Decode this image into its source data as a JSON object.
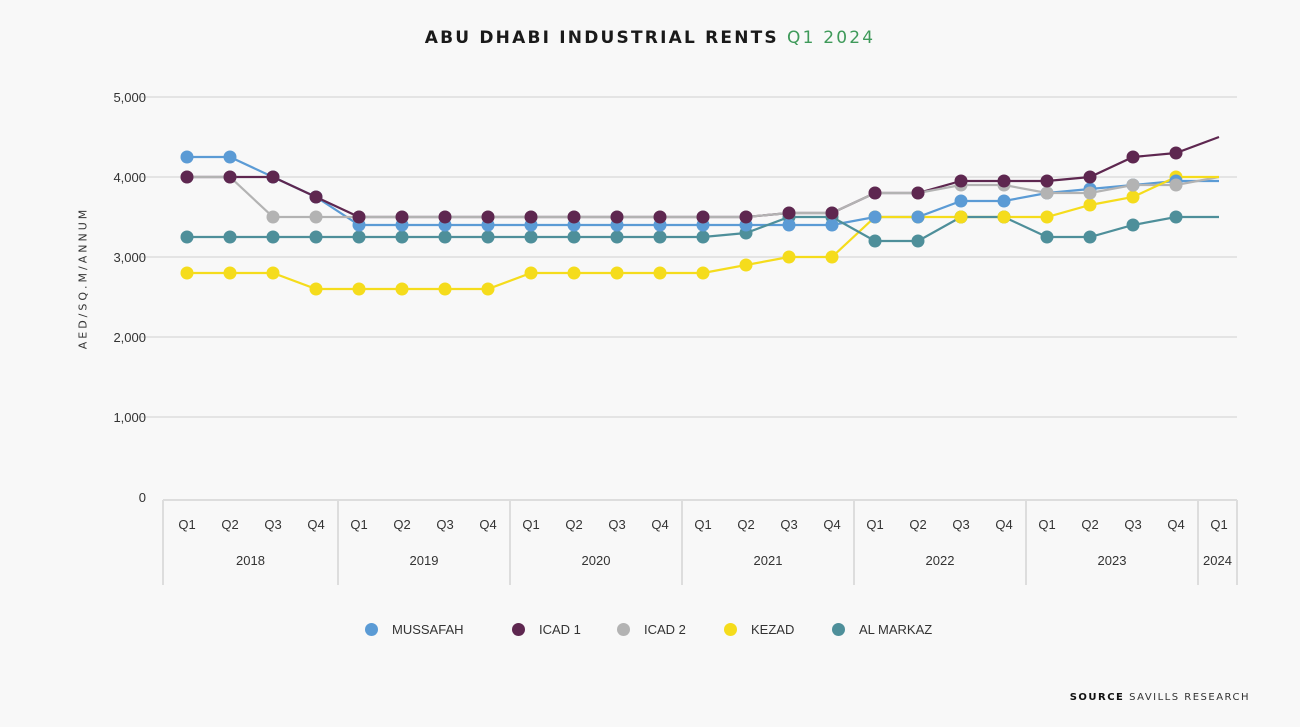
{
  "chart_data": {
    "type": "line",
    "title": "ABU DHABI INDUSTRIAL RENTS",
    "title_highlight": "Q1 2024",
    "title_highlight_color": "#3f9a5a",
    "ylabel": "AED/SQ.M/ANNUM",
    "xlabel": "",
    "ylim": [
      0,
      5000
    ],
    "yticks": [
      0,
      1000,
      2000,
      3000,
      4000,
      5000
    ],
    "ytick_labels": [
      "0",
      "1,000",
      "2,000",
      "3,000",
      "4,000",
      "5,000"
    ],
    "grid": true,
    "legend_position": "bottom",
    "years": [
      {
        "label": "2018",
        "quarters": [
          "Q1",
          "Q2",
          "Q3",
          "Q4"
        ]
      },
      {
        "label": "2019",
        "quarters": [
          "Q1",
          "Q2",
          "Q3",
          "Q4"
        ]
      },
      {
        "label": "2020",
        "quarters": [
          "Q1",
          "Q2",
          "Q3",
          "Q4"
        ]
      },
      {
        "label": "2021",
        "quarters": [
          "Q1",
          "Q2",
          "Q3",
          "Q4"
        ]
      },
      {
        "label": "2022",
        "quarters": [
          "Q1",
          "Q2",
          "Q3",
          "Q4"
        ]
      },
      {
        "label": "2023",
        "quarters": [
          "Q1",
          "Q2",
          "Q3",
          "Q4"
        ]
      },
      {
        "label": "2024",
        "quarters": [
          "Q1"
        ]
      }
    ],
    "series": [
      {
        "name": "MUSSAFAH",
        "color": "#5b9bd5",
        "markers_until": 24,
        "values": [
          4250,
          4250,
          4000,
          3750,
          3400,
          3400,
          3400,
          3400,
          3400,
          3400,
          3400,
          3400,
          3400,
          3400,
          3400,
          3400,
          3500,
          3500,
          3700,
          3700,
          3800,
          3850,
          3900,
          3950,
          3950
        ]
      },
      {
        "name": "ICAD 1",
        "color": "#5e2750",
        "markers_until": 24,
        "values": [
          4000,
          4000,
          4000,
          3750,
          3500,
          3500,
          3500,
          3500,
          3500,
          3500,
          3500,
          3500,
          3500,
          3500,
          3550,
          3550,
          3800,
          3800,
          3950,
          3950,
          3950,
          4000,
          4250,
          4300,
          4500
        ]
      },
      {
        "name": "ICAD 2",
        "color": "#b3b3b3",
        "markers_until": 24,
        "values": [
          4000,
          4000,
          3500,
          3500,
          3500,
          3500,
          3500,
          3500,
          3500,
          3500,
          3500,
          3500,
          3500,
          3500,
          3550,
          3550,
          3800,
          3800,
          3900,
          3900,
          3800,
          3800,
          3900,
          3900,
          4000
        ]
      },
      {
        "name": "KEZAD",
        "color": "#f5dc1c",
        "markers_until": 24,
        "values": [
          2800,
          2800,
          2800,
          2600,
          2600,
          2600,
          2600,
          2600,
          2800,
          2800,
          2800,
          2800,
          2800,
          2900,
          3000,
          3000,
          3500,
          3500,
          3500,
          3500,
          3500,
          3650,
          3750,
          4000,
          4000
        ]
      },
      {
        "name": "AL MARKAZ",
        "color": "#4e8f9a",
        "markers_until": 24,
        "values": [
          3250,
          3250,
          3250,
          3250,
          3250,
          3250,
          3250,
          3250,
          3250,
          3250,
          3250,
          3250,
          3250,
          3300,
          3500,
          3500,
          3200,
          3200,
          3500,
          3500,
          3250,
          3250,
          3400,
          3500,
          3500
        ]
      }
    ]
  },
  "source": {
    "label": "SOURCE",
    "text": "SAVILLS RESEARCH"
  }
}
